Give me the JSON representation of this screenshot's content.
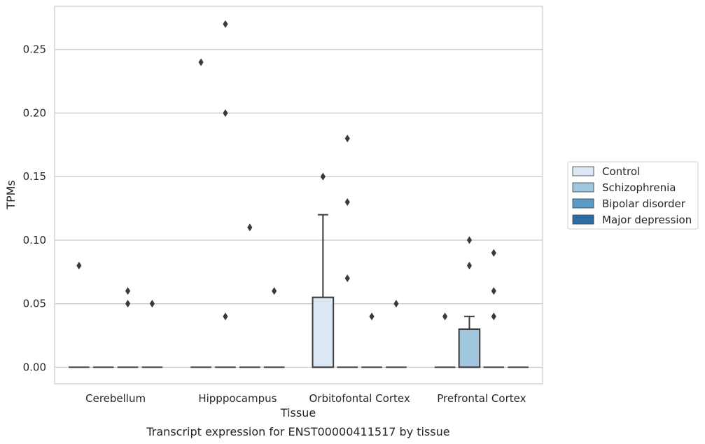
{
  "chart_data": {
    "type": "box",
    "xlabel": "Tissue",
    "ylabel": "TPMs",
    "caption": "Transcript expression for ENST00000411517 by tissue",
    "categories": [
      "Cerebellum",
      "Hipppocampus",
      "Orbitofontal Cortex",
      "Prefrontal Cortex"
    ],
    "ylim": [
      -0.013,
      0.284
    ],
    "yticks": [
      0.0,
      0.05,
      0.1,
      0.15,
      0.2,
      0.25
    ],
    "ytick_labels": [
      "0.00",
      "0.05",
      "0.10",
      "0.15",
      "0.20",
      "0.25"
    ],
    "grid": "horizontal",
    "legend_position": "right",
    "series": [
      {
        "name": "Control",
        "color": "#dbe8f4",
        "boxes": [
          {
            "category": "Cerebellum",
            "q1": 0,
            "median": 0,
            "q3": 0,
            "whisker_low": 0,
            "whisker_high": 0,
            "outliers": [
              0.08
            ]
          },
          {
            "category": "Hipppocampus",
            "q1": 0,
            "median": 0,
            "q3": 0,
            "whisker_low": 0,
            "whisker_high": 0,
            "outliers": [
              0.24
            ]
          },
          {
            "category": "Orbitofontal Cortex",
            "q1": 0,
            "median": 0,
            "q3": 0.055,
            "whisker_low": 0,
            "whisker_high": 0.12,
            "outliers": [
              0.15
            ]
          },
          {
            "category": "Prefrontal Cortex",
            "q1": 0,
            "median": 0,
            "q3": 0,
            "whisker_low": 0,
            "whisker_high": 0,
            "outliers": [
              0.04
            ]
          }
        ]
      },
      {
        "name": "Schizophrenia",
        "color": "#a0c6de",
        "boxes": [
          {
            "category": "Cerebellum",
            "q1": 0,
            "median": 0,
            "q3": 0,
            "whisker_low": 0,
            "whisker_high": 0,
            "outliers": []
          },
          {
            "category": "Hipppocampus",
            "q1": 0,
            "median": 0,
            "q3": 0,
            "whisker_low": 0,
            "whisker_high": 0,
            "outliers": [
              0.27,
              0.2,
              0.04
            ]
          },
          {
            "category": "Orbitofontal Cortex",
            "q1": 0,
            "median": 0,
            "q3": 0,
            "whisker_low": 0,
            "whisker_high": 0,
            "outliers": [
              0.18,
              0.13,
              0.07
            ]
          },
          {
            "category": "Prefrontal Cortex",
            "q1": 0,
            "median": 0,
            "q3": 0.03,
            "whisker_low": 0,
            "whisker_high": 0.04,
            "outliers": [
              0.1,
              0.08
            ]
          }
        ]
      },
      {
        "name": "Bipolar disorder",
        "color": "#5a9ac7",
        "boxes": [
          {
            "category": "Cerebellum",
            "q1": 0,
            "median": 0,
            "q3": 0,
            "whisker_low": 0,
            "whisker_high": 0,
            "outliers": [
              0.06,
              0.05
            ]
          },
          {
            "category": "Hipppocampus",
            "q1": 0,
            "median": 0,
            "q3": 0,
            "whisker_low": 0,
            "whisker_high": 0,
            "outliers": [
              0.11
            ]
          },
          {
            "category": "Orbitofontal Cortex",
            "q1": 0,
            "median": 0,
            "q3": 0,
            "whisker_low": 0,
            "whisker_high": 0,
            "outliers": [
              0.04
            ]
          },
          {
            "category": "Prefrontal Cortex",
            "q1": 0,
            "median": 0,
            "q3": 0,
            "whisker_low": 0,
            "whisker_high": 0,
            "outliers": [
              0.09,
              0.06,
              0.04
            ]
          }
        ]
      },
      {
        "name": "Major depression",
        "color": "#2c6ba6",
        "boxes": [
          {
            "category": "Cerebellum",
            "q1": 0,
            "median": 0,
            "q3": 0,
            "whisker_low": 0,
            "whisker_high": 0,
            "outliers": [
              0.05
            ]
          },
          {
            "category": "Hipppocampus",
            "q1": 0,
            "median": 0,
            "q3": 0,
            "whisker_low": 0,
            "whisker_high": 0,
            "outliers": [
              0.06
            ]
          },
          {
            "category": "Orbitofontal Cortex",
            "q1": 0,
            "median": 0,
            "q3": 0,
            "whisker_low": 0,
            "whisker_high": 0,
            "outliers": [
              0.05
            ]
          },
          {
            "category": "Prefrontal Cortex",
            "q1": 0,
            "median": 0,
            "q3": 0,
            "whisker_low": 0,
            "whisker_high": 0,
            "outliers": []
          }
        ]
      }
    ]
  },
  "colors": {
    "grid": "#cccccc",
    "frame": "#cccccc",
    "line": "#3a3a3a",
    "outlier": "#3a3a3a"
  }
}
